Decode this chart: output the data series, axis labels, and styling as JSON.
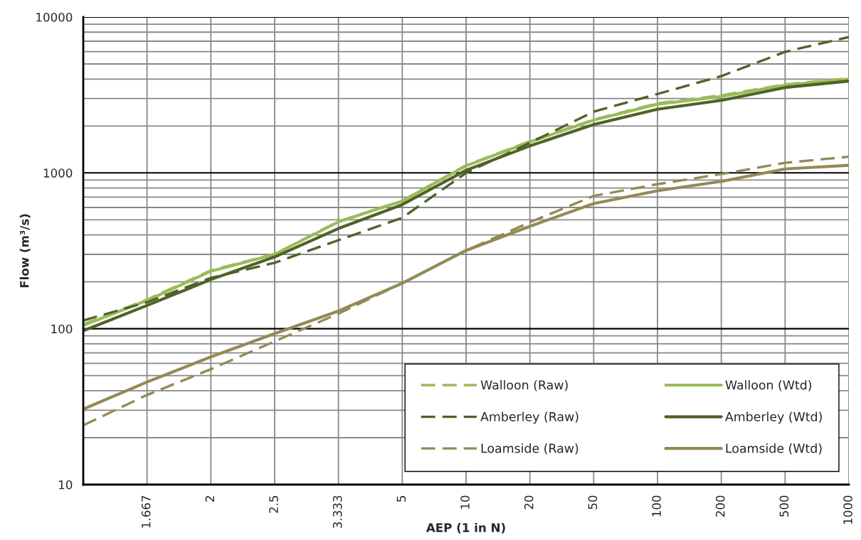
{
  "chart_data": {
    "type": "line",
    "xlabel": "AEP (1 in N)",
    "ylabel": "Flow (m³/s)",
    "categories": [
      null,
      "1.667",
      "2",
      "2.5",
      "3.333",
      "5",
      "10",
      "20",
      "50",
      "100",
      "200",
      "500",
      "1000"
    ],
    "series": [
      {
        "name": "Walloon (Raw)",
        "color": "#9bbb59",
        "line_style": "dashed",
        "values": [
          107,
          154,
          237,
          302,
          489,
          663,
          1120,
          1600,
          2200,
          2800,
          3150,
          3700,
          4050
        ]
      },
      {
        "name": "Walloon (Wtd)",
        "color": "#9bbb59",
        "line_style": "solid",
        "values": [
          105,
          152,
          234,
          300,
          485,
          660,
          1110,
          1580,
          2180,
          2760,
          3090,
          3660,
          4000
        ]
      },
      {
        "name": "Amberley (Raw)",
        "color": "#4f6228",
        "line_style": "dashed",
        "values": [
          113,
          148,
          212,
          265,
          370,
          515,
          1000,
          1560,
          2470,
          3210,
          4180,
          5980,
          7440
        ]
      },
      {
        "name": "Amberley (Wtd)",
        "color": "#4f6228",
        "line_style": "solid",
        "values": [
          97,
          141,
          207,
          289,
          440,
          626,
          1040,
          1490,
          2045,
          2560,
          2920,
          3530,
          3880
        ]
      },
      {
        "name": "Loamside (Raw)",
        "color": "#948a54",
        "line_style": "dashed",
        "values": [
          24,
          37.6,
          55,
          83,
          125,
          196,
          318,
          482,
          712,
          846,
          983,
          1160,
          1270
        ]
      },
      {
        "name": "Loamside (Wtd)",
        "color": "#948a54",
        "line_style": "solid",
        "values": [
          30.5,
          45.5,
          66,
          93,
          130,
          196,
          318,
          454,
          636,
          768,
          882,
          1060,
          1120
        ]
      }
    ],
    "log": "y",
    "ylim": [
      10,
      10000
    ],
    "yticks": [
      10,
      100,
      1000,
      10000
    ],
    "grid": true,
    "legend": "bottom right"
  }
}
